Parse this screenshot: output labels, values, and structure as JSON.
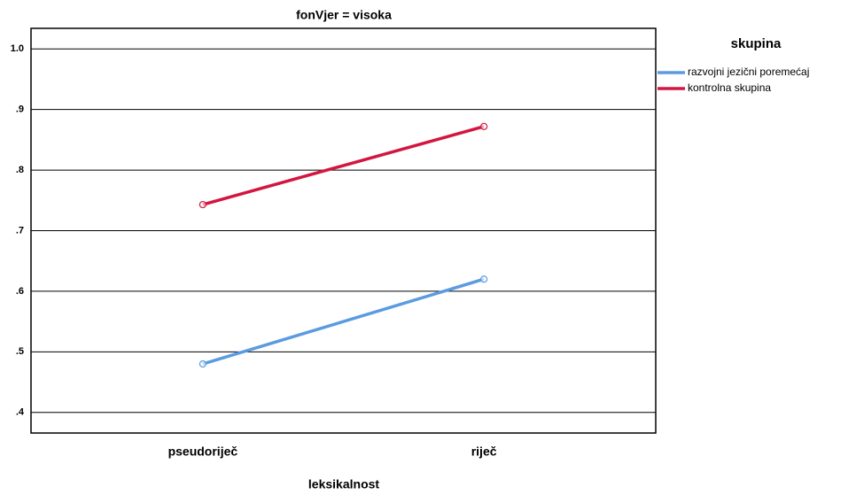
{
  "chart_data": {
    "type": "line",
    "title": "fonVjer = visoka",
    "x_label": "leksikalnost",
    "legend_title": "skupina",
    "categories": [
      "pseudoriječ",
      "riječ"
    ],
    "series": [
      {
        "name": "razvojni jezični poremećaj",
        "color": "#5b9be0",
        "values": [
          0.48,
          0.62
        ]
      },
      {
        "name": "kontrolna skupina",
        "color": "#d3163f",
        "values": [
          0.743,
          0.872
        ]
      }
    ],
    "ylim": [
      0.366,
      1.034
    ],
    "yticks": [
      {
        "value": 0.4,
        "label": ".4"
      },
      {
        "value": 0.5,
        "label": ".5"
      },
      {
        "value": 0.6,
        "label": ".6"
      },
      {
        "value": 0.7,
        "label": ".7"
      },
      {
        "value": 0.8,
        "label": ".8"
      },
      {
        "value": 0.9,
        "label": ".9"
      },
      {
        "value": 1.0,
        "label": "1.0"
      }
    ],
    "grid": true
  }
}
